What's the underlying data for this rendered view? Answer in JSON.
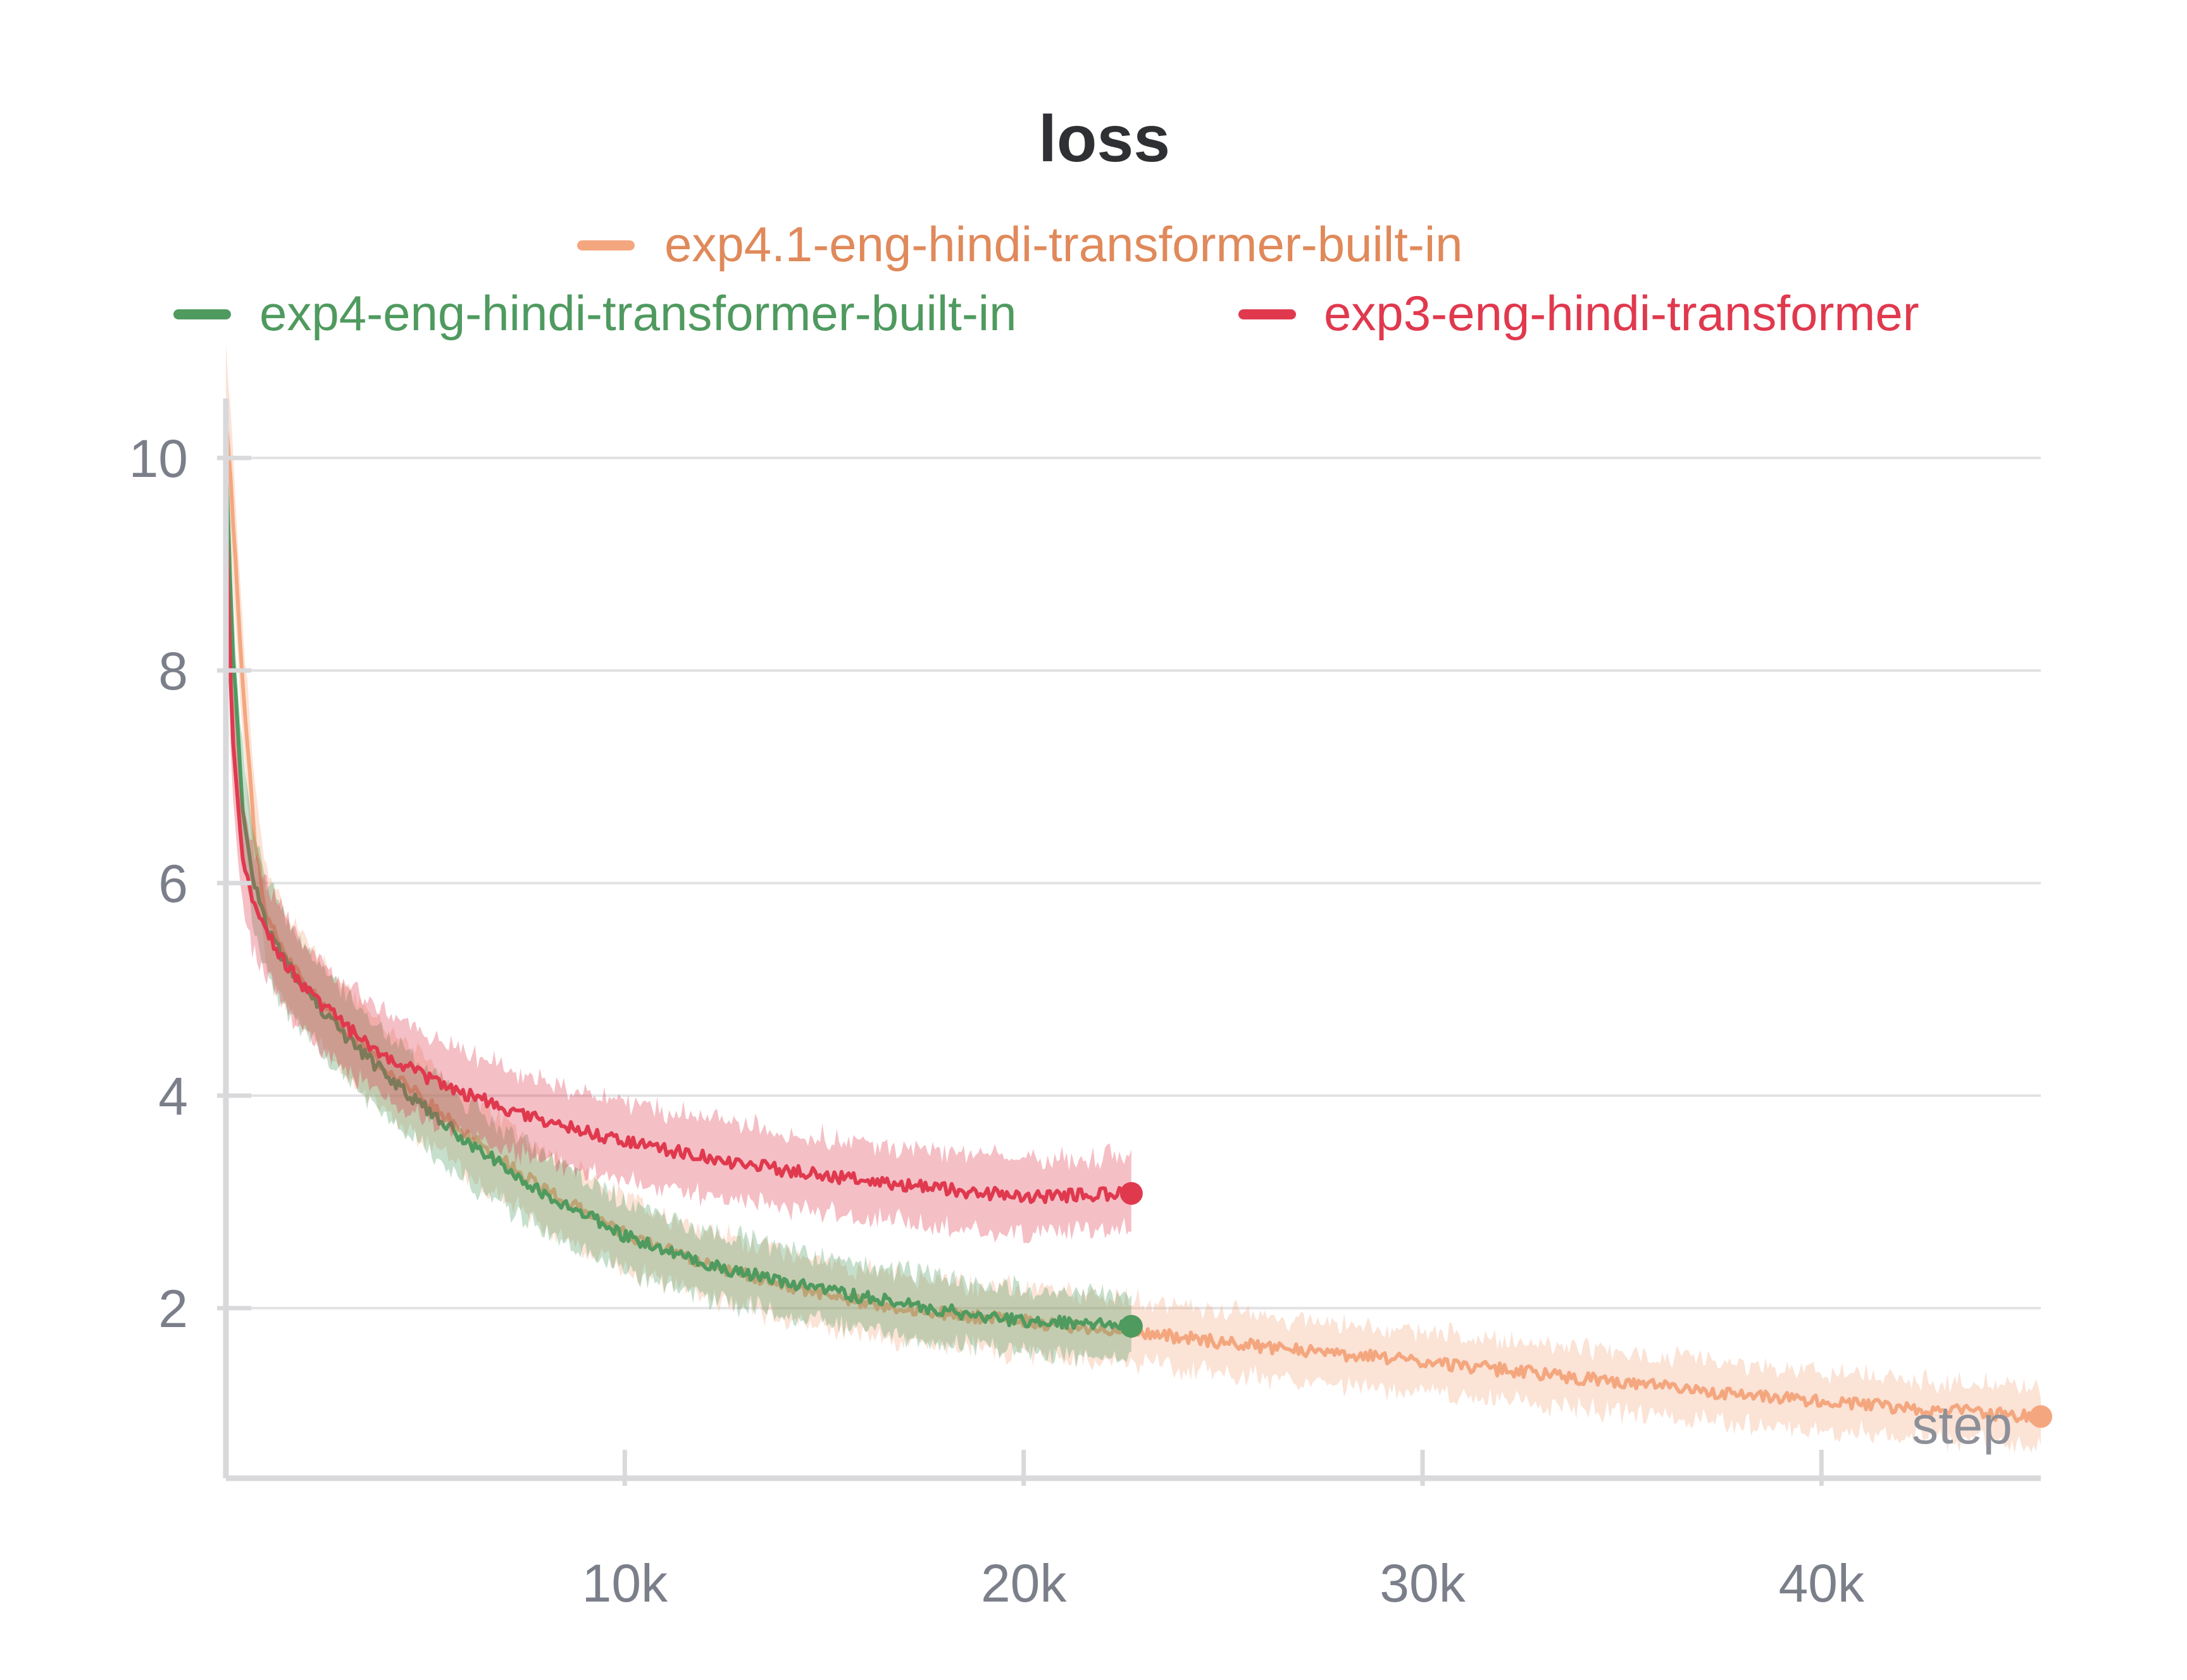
{
  "chart_data": {
    "type": "line",
    "title": "loss",
    "xlabel": "step",
    "ylabel": "",
    "xlim": [
      0,
      45500
    ],
    "ylim": [
      0.4,
      10.5
    ],
    "x_ticks": [
      {
        "value": 10000,
        "label": "10k"
      },
      {
        "value": 20000,
        "label": "20k"
      },
      {
        "value": 30000,
        "label": "30k"
      },
      {
        "value": 40000,
        "label": "40k"
      }
    ],
    "y_ticks": [
      {
        "value": 2,
        "label": "2"
      },
      {
        "value": 4,
        "label": "4"
      },
      {
        "value": 6,
        "label": "6"
      },
      {
        "value": 8,
        "label": "8"
      },
      {
        "value": 10,
        "label": "10"
      }
    ],
    "grid": true,
    "legend_position": "top-center",
    "series": [
      {
        "name": "exp4.1-eng-hindi-transformer-built-in",
        "color": "#f4a77f",
        "label_color": "#e0895a",
        "x": [
          0,
          150,
          400,
          700,
          1000,
          1500,
          2000,
          3000,
          4000,
          5000,
          6000,
          7000,
          8000,
          9000,
          10000,
          12000,
          14000,
          16000,
          18000,
          20000,
          22000,
          22700,
          25000,
          27500,
          30000,
          32500,
          35000,
          37500,
          40000,
          42500,
          45500
        ],
        "values": [
          10.4,
          9.6,
          8.0,
          6.5,
          5.7,
          5.3,
          5.05,
          4.6,
          4.25,
          3.95,
          3.65,
          3.38,
          3.12,
          2.9,
          2.7,
          2.42,
          2.22,
          2.05,
          1.95,
          1.88,
          1.8,
          1.78,
          1.68,
          1.58,
          1.5,
          1.4,
          1.3,
          1.2,
          1.12,
          1.05,
          0.98
        ],
        "band_spread": 0.25
      },
      {
        "name": "exp4-eng-hindi-transformer-built-in",
        "color": "#4f9a5f",
        "label_color": "#4f9a5f",
        "x": [
          0,
          150,
          400,
          700,
          1000,
          1500,
          2000,
          3000,
          4000,
          5000,
          6000,
          7000,
          8000,
          9000,
          10000,
          12000,
          14000,
          16000,
          18000,
          20000,
          22700
        ],
        "values": [
          10.0,
          8.3,
          6.8,
          6.0,
          5.6,
          5.25,
          5.0,
          4.55,
          4.2,
          3.88,
          3.58,
          3.32,
          3.08,
          2.88,
          2.68,
          2.42,
          2.25,
          2.1,
          1.98,
          1.88,
          1.83
        ],
        "band_spread": 0.25
      },
      {
        "name": "exp3-eng-hindi-transformer",
        "color": "#e0394e",
        "label_color": "#e0394e",
        "x": [
          0,
          150,
          400,
          700,
          1000,
          1500,
          2000,
          3000,
          4000,
          5000,
          6000,
          7000,
          8000,
          9000,
          10000,
          12000,
          14000,
          16000,
          18000,
          20000,
          22700
        ],
        "values": [
          9.6,
          7.4,
          6.3,
          5.8,
          5.55,
          5.25,
          5.0,
          4.65,
          4.38,
          4.18,
          4.02,
          3.88,
          3.76,
          3.66,
          3.57,
          3.42,
          3.3,
          3.2,
          3.12,
          3.05,
          3.08
        ],
        "band_spread": 0.25
      }
    ]
  }
}
